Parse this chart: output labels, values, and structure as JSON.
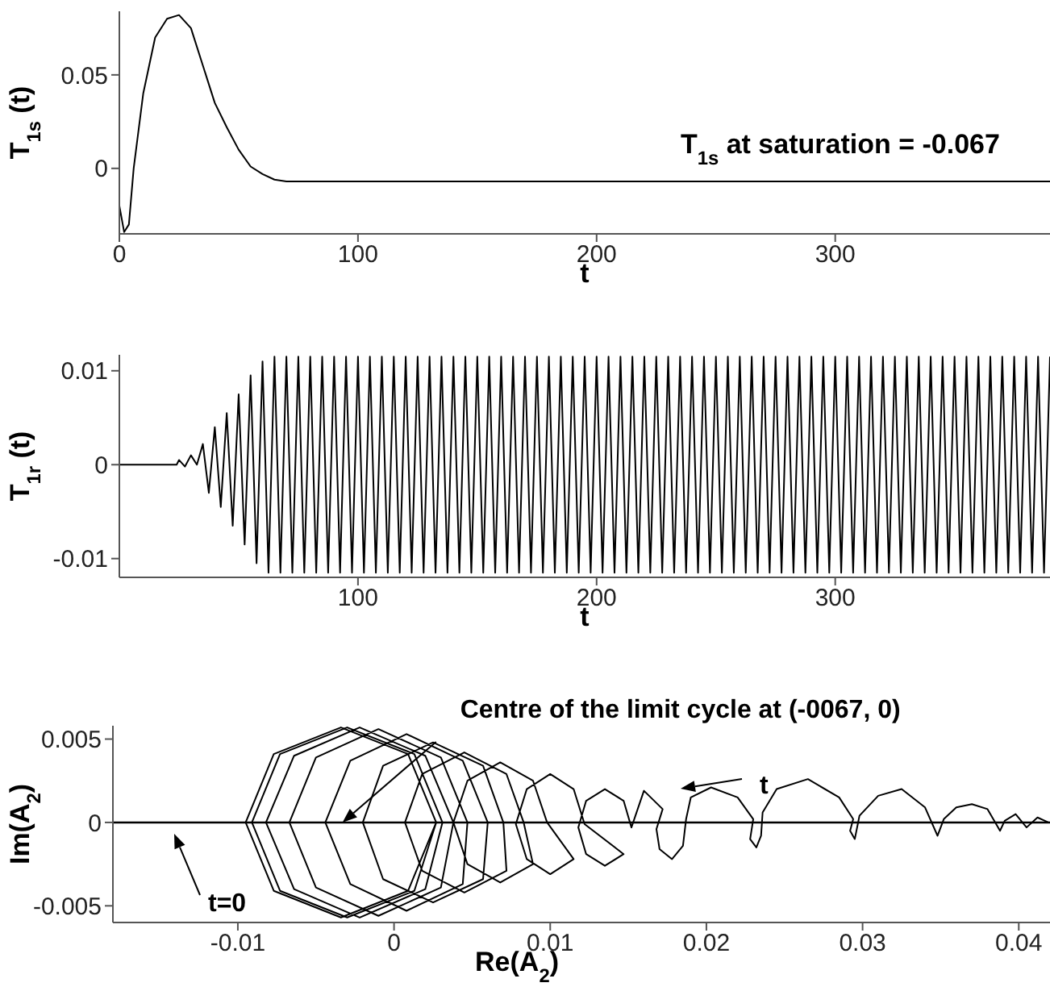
{
  "chart_data": [
    {
      "type": "line",
      "ylabel": "T$_{1s}$ (t)",
      "xlabel": "t",
      "xlim": [
        0,
        390
      ],
      "xticks": [
        0,
        100,
        200,
        300
      ],
      "ylim": [
        -0.035,
        0.084
      ],
      "yticks": [
        0,
        0.05
      ],
      "annotations": [
        "T$_{1s}$ at saturation = -0.067"
      ],
      "series": [
        {
          "color": "#000000",
          "x": [
            0,
            2,
            4,
            6,
            10,
            15,
            20,
            25,
            30,
            35,
            40,
            45,
            50,
            55,
            60,
            65,
            70,
            80,
            100,
            200,
            390
          ],
          "values": [
            -0.02,
            -0.034,
            -0.03,
            0,
            0.04,
            0.07,
            0.08,
            0.082,
            0.075,
            0.055,
            0.035,
            0.022,
            0.01,
            0.001,
            -0.003,
            -0.006,
            -0.007,
            -0.007,
            -0.007,
            -0.007,
            -0.007
          ]
        }
      ]
    },
    {
      "type": "line",
      "ylabel": "T$_{1r}$ (t)",
      "xlabel": "t",
      "xlim": [
        0,
        390
      ],
      "xticks": [
        100,
        200,
        300
      ],
      "ylim": [
        -0.012,
        0.0117
      ],
      "yticks": [
        -0.01,
        0,
        0.01
      ],
      "series": [
        {
          "color": "#000000",
          "x": [
            0,
            24,
            25,
            27.5,
            30,
            32.5,
            35,
            37.5,
            40,
            42.5,
            45,
            47.5,
            50,
            52.5,
            55,
            57.5,
            60,
            62.5,
            65,
            67.5,
            70,
            72.5,
            75,
            77.5,
            80,
            82.5,
            85,
            87.5,
            90,
            92.5,
            95,
            97.5,
            100,
            102.5,
            105,
            107.5,
            110,
            112.5,
            115,
            117.5,
            120,
            122.5,
            125,
            127.5,
            130,
            132.5,
            135,
            137.5,
            140,
            142.5,
            145,
            147.5,
            150,
            152.5,
            155,
            157.5,
            160,
            162.5,
            165,
            167.5,
            170,
            172.5,
            175,
            177.5,
            180,
            182.5,
            185,
            187.5,
            190,
            192.5,
            195,
            197.5,
            200,
            202.5,
            205,
            207.5,
            210,
            212.5,
            215,
            217.5,
            220,
            222.5,
            225,
            227.5,
            230,
            232.5,
            235,
            237.5,
            240,
            242.5,
            245,
            247.5,
            250,
            252.5,
            255,
            257.5,
            260,
            262.5,
            265,
            267.5,
            270,
            272.5,
            275,
            277.5,
            280,
            282.5,
            285,
            287.5,
            290,
            292.5,
            295,
            297.5,
            300,
            302.5,
            305,
            307.5,
            310,
            312.5,
            315,
            317.5,
            320,
            322.5,
            325,
            327.5,
            330,
            332.5,
            335,
            337.5,
            340,
            342.5,
            345,
            347.5,
            350,
            352.5,
            355,
            357.5,
            360,
            362.5,
            365,
            367.5,
            370,
            372.5,
            375,
            377.5,
            380,
            382.5,
            385,
            387.5,
            390
          ],
          "values": [
            0,
            0,
            0.0005,
            -0.0002,
            0.001,
            0,
            0.0022,
            -0.003,
            0.004,
            -0.0045,
            0.0055,
            -0.0065,
            0.0075,
            -0.0085,
            0.0095,
            -0.0105,
            0.011,
            -0.0115,
            0.0115,
            -0.0115,
            0.0115,
            -0.0115,
            0.0115,
            -0.0115,
            0.0115,
            -0.0115,
            0.0115,
            -0.0115,
            0.0115,
            -0.0115,
            0.0115,
            -0.0115,
            0.0115,
            -0.0115,
            0.0115,
            -0.0115,
            0.0115,
            -0.0115,
            0.0115,
            -0.0115,
            0.0115,
            -0.0115,
            0.0115,
            -0.0115,
            0.0115,
            -0.0115,
            0.0115,
            -0.0115,
            0.0115,
            -0.0115,
            0.0115,
            -0.0115,
            0.0115,
            -0.0115,
            0.0115,
            -0.0115,
            0.0115,
            -0.0115,
            0.0115,
            -0.0115,
            0.0115,
            -0.0115,
            0.0115,
            -0.0115,
            0.0115,
            -0.0115,
            0.0115,
            -0.0115,
            0.0115,
            -0.0115,
            0.0115,
            -0.0115,
            0.0115,
            -0.0115,
            0.0115,
            -0.0115,
            0.0115,
            -0.0115,
            0.0115,
            -0.0115,
            0.0115,
            -0.0115,
            0.0115,
            -0.0115,
            0.0115,
            -0.0115,
            0.0115,
            -0.0115,
            0.0115,
            -0.0115,
            0.0115,
            -0.0115,
            0.0115,
            -0.0115,
            0.0115,
            -0.0115,
            0.0115,
            -0.0115,
            0.0115,
            -0.0115,
            0.0115,
            -0.0115,
            0.0115,
            -0.0115,
            0.0115,
            -0.0115,
            0.0115,
            -0.0115,
            0.0115,
            -0.0115,
            0.0115,
            -0.0115,
            0.0115,
            -0.0115,
            0.0115,
            -0.0115,
            0.0115,
            -0.0115,
            0.0115,
            -0.0115,
            0.0115,
            -0.0115,
            0.0115,
            -0.0115,
            0.0115,
            -0.0115,
            0.0115,
            -0.0115,
            0.0115,
            -0.0115,
            0.0115,
            -0.0115,
            0.0115,
            -0.0115,
            0.0115,
            -0.0115,
            0.0115,
            -0.0115,
            0.0115,
            -0.0115,
            0.0115,
            -0.0115,
            0.0115,
            -0.0115,
            0.0115,
            -0.0115,
            0.0115,
            -0.0115,
            0.0115
          ]
        }
      ]
    },
    {
      "type": "line",
      "ylabel": "Im(A$_{2}$)",
      "xlabel": "Re(A$_{2}$)",
      "xlim": [
        -0.018,
        0.042
      ],
      "xticks": [
        -0.01,
        0,
        0.01,
        0.02,
        0.03,
        0.04
      ],
      "ylim": [
        -0.006,
        0.0058
      ],
      "yticks": [
        -0.005,
        0,
        0.005
      ],
      "ref_lines": [
        {
          "axis": "y",
          "value": 0
        }
      ],
      "annotations": [
        {
          "text": "Centre of the limit cycle at (-0067, 0)",
          "x": -0.0033,
          "y": 0
        },
        "t",
        "t=0"
      ],
      "series": [
        {
          "color": "#000000",
          "x": [
            0.0419,
            0.0412,
            0.0405,
            0.0398,
            0.0391,
            0.0388,
            0.038,
            0.037,
            0.036,
            0.0352,
            0.0348,
            0.034,
            0.0325,
            0.031,
            0.0298,
            0.0295,
            0.0292,
            0.0294,
            0.0285,
            0.0265,
            0.0245,
            0.0236,
            0.0235,
            0.0232,
            0.0228,
            0.023,
            0.022,
            0.0203,
            0.019,
            0.0187,
            0.0185,
            0.0178,
            0.017,
            0.0168,
            0.0172,
            0.016,
            0.0152,
            0.0147,
            0.0135,
            0.0123,
            0.0118,
            0.0123,
            0.0135,
            0.0147,
            0.0122,
            0.0115,
            0.01,
            0.0085,
            0.0078,
            0.0085,
            0.01,
            0.0115,
            0.0098,
            0.0089,
            0.0068,
            0.0047,
            0.0038,
            0.0047,
            0.0068,
            0.0089,
            0.0083,
            0.0072,
            0.0045,
            0.0018,
            0.0007,
            0.0018,
            0.0045,
            0.0072,
            0.007,
            0.0057,
            0.0025,
            -0.0007,
            -0.002,
            -0.0007,
            0.0025,
            0.0057,
            0.006,
            0.0044,
            0.0008,
            -0.0028,
            -0.0044,
            -0.0028,
            0.0008,
            0.0044,
            0.0047,
            0.003,
            -0.001,
            -0.005,
            -0.0067,
            -0.005,
            -0.001,
            0.003,
            0.0038,
            0.002,
            -0.0022,
            -0.0064,
            -0.0082,
            -0.0064,
            -0.0022,
            0.002,
            0.0031,
            0.0013,
            -0.003,
            -0.0073,
            -0.0091,
            -0.0073,
            -0.003,
            0.0013,
            0.0027,
            0.0009,
            -0.0034,
            -0.0077,
            -0.0095,
            -0.0077,
            -0.0034,
            0.0009,
            0.0027
          ],
          "values": [
            0,
            0.0003,
            -0.0003,
            0.0005,
            0.0001,
            -0.0005,
            0.0008,
            0.0011,
            0.0009,
            0.0002,
            -0.0008,
            0.0009,
            0.002,
            0.0016,
            0.0004,
            -0.001,
            -0.0005,
            0.0002,
            0.0015,
            0.0026,
            0.002,
            0.0006,
            -0.0008,
            -0.0015,
            -0.001,
            0.0002,
            0.0015,
            0.0021,
            0.0015,
            0.0002,
            -0.0014,
            -0.0022,
            -0.0016,
            -0.0004,
            0.0008,
            0.0019,
            -0.0003,
            0.0013,
            0.002,
            0.0013,
            -0.0003,
            -0.0019,
            -0.0026,
            -0.0019,
            -0.0001,
            0.002,
            0.0029,
            0.002,
            -0.0001,
            -0.0022,
            -0.0031,
            -0.0022,
            0,
            0.0025,
            0.0036,
            0.0025,
            0,
            -0.0025,
            -0.0036,
            -0.0025,
            0,
            0.0029,
            0.0042,
            0.0029,
            0,
            -0.0029,
            -0.0042,
            -0.0029,
            0,
            0.0034,
            0.0048,
            0.0034,
            0,
            -0.0034,
            -0.0048,
            -0.0034,
            0,
            0.0037,
            0.0053,
            0.0037,
            0,
            -0.0037,
            -0.0053,
            -0.0037,
            0,
            0.0039,
            0.0056,
            0.0039,
            0,
            -0.0039,
            -0.0056,
            -0.0039,
            0,
            0.004,
            0.0057,
            0.004,
            0,
            -0.004,
            -0.0057,
            -0.004,
            0,
            0.0041,
            0.0057,
            0.0041,
            0,
            -0.0041,
            -0.0057,
            -0.0041,
            0,
            0.0041,
            0.0057,
            0.0041,
            0,
            -0.0041,
            -0.0057,
            -0.0041,
            0
          ]
        }
      ]
    }
  ]
}
